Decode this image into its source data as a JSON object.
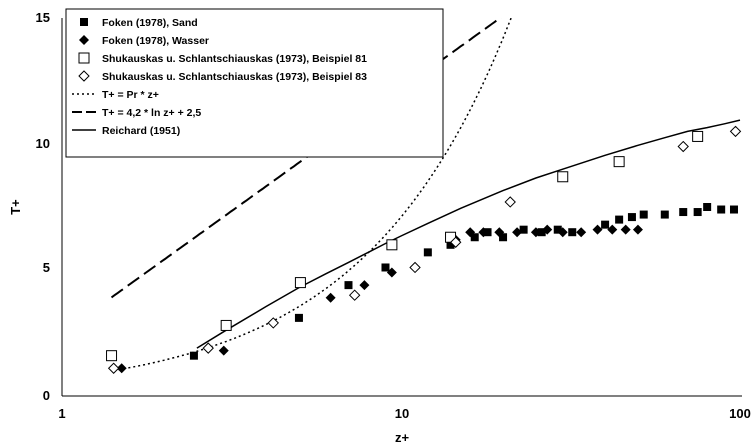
{
  "chart_data": {
    "type": "scatter",
    "xlabel": "z+",
    "ylabel": "T+",
    "xscale": "log",
    "xlim": [
      1,
      100
    ],
    "ylim": [
      0,
      15
    ],
    "xticks": [
      "1",
      "10",
      "100"
    ],
    "yticks": [
      "0",
      "5",
      "10",
      "15"
    ],
    "grid": false,
    "legend_position": "top-left",
    "series": [
      {
        "name": "Foken (1978), Sand",
        "marker": "filled-square",
        "points": [
          [
            2.45,
            1.6
          ],
          [
            5.0,
            3.1
          ],
          [
            7.0,
            4.4
          ],
          [
            9.0,
            5.1
          ],
          [
            12.0,
            5.7
          ],
          [
            14.0,
            6.0
          ],
          [
            16.5,
            6.3
          ],
          [
            18.0,
            6.5
          ],
          [
            20.0,
            6.3
          ],
          [
            23.0,
            6.6
          ],
          [
            26.0,
            6.5
          ],
          [
            29.0,
            6.6
          ],
          [
            32.0,
            6.5
          ],
          [
            40.0,
            6.8
          ],
          [
            44.0,
            7.0
          ],
          [
            48.0,
            7.1
          ],
          [
            52.0,
            7.2
          ],
          [
            60.0,
            7.2
          ],
          [
            68.0,
            7.3
          ],
          [
            75.0,
            7.3
          ],
          [
            80.0,
            7.5
          ],
          [
            88.0,
            7.4
          ],
          [
            96.0,
            7.4
          ]
        ]
      },
      {
        "name": "Foken (1978), Wasser",
        "marker": "filled-diamond",
        "points": [
          [
            1.5,
            1.1
          ],
          [
            3.0,
            1.8
          ],
          [
            6.2,
            3.9
          ],
          [
            7.8,
            4.4
          ],
          [
            9.4,
            4.9
          ],
          [
            14.5,
            6.2
          ],
          [
            16.0,
            6.5
          ],
          [
            17.5,
            6.5
          ],
          [
            19.5,
            6.5
          ],
          [
            22.0,
            6.5
          ],
          [
            25.0,
            6.5
          ],
          [
            27.0,
            6.6
          ],
          [
            30.0,
            6.5
          ],
          [
            34.0,
            6.5
          ],
          [
            38.0,
            6.6
          ],
          [
            42.0,
            6.6
          ],
          [
            46.0,
            6.6
          ],
          [
            50.0,
            6.6
          ]
        ]
      },
      {
        "name": "Shukauskas u. Schlantschiauskas (1973), Beispiel 81",
        "marker": "open-square",
        "points": [
          [
            1.4,
            1.6
          ],
          [
            3.05,
            2.8
          ],
          [
            5.05,
            4.5
          ],
          [
            9.4,
            6.0
          ],
          [
            14.0,
            6.3
          ],
          [
            30.0,
            8.7
          ],
          [
            44.0,
            9.3
          ],
          [
            75.0,
            10.3
          ]
        ]
      },
      {
        "name": "Shukauskas u. Schlantschiauskas (1973), Beispiel 83",
        "marker": "open-diamond",
        "points": [
          [
            1.42,
            1.1
          ],
          [
            2.7,
            1.9
          ],
          [
            4.2,
            2.9
          ],
          [
            7.3,
            4.0
          ],
          [
            11.0,
            5.1
          ],
          [
            14.5,
            6.1
          ],
          [
            21.0,
            7.7
          ],
          [
            68.0,
            9.9
          ],
          [
            97.0,
            10.5
          ]
        ]
      },
      {
        "name": "T+ = Pr * z+",
        "line": "dotted",
        "formula": "0.71*z"
      },
      {
        "name": "T+ = 4,2 * ln z+ + 2,5",
        "line": "dashed",
        "formula": "4.2*ln(z)+2.5"
      },
      {
        "name": "Reichard (1951)",
        "line": "solid",
        "points": [
          [
            2.5,
            1.9
          ],
          [
            3,
            2.55
          ],
          [
            4,
            3.55
          ],
          [
            5,
            4.3
          ],
          [
            6,
            4.85
          ],
          [
            7,
            5.3
          ],
          [
            8,
            5.7
          ],
          [
            9,
            6.05
          ],
          [
            10,
            6.35
          ],
          [
            12,
            6.85
          ],
          [
            15,
            7.45
          ],
          [
            20,
            8.15
          ],
          [
            25,
            8.65
          ],
          [
            30,
            9.0
          ],
          [
            40,
            9.55
          ],
          [
            50,
            9.95
          ],
          [
            60,
            10.25
          ],
          [
            70,
            10.5
          ],
          [
            80,
            10.65
          ],
          [
            90,
            10.8
          ],
          [
            100,
            10.95
          ]
        ]
      }
    ]
  }
}
